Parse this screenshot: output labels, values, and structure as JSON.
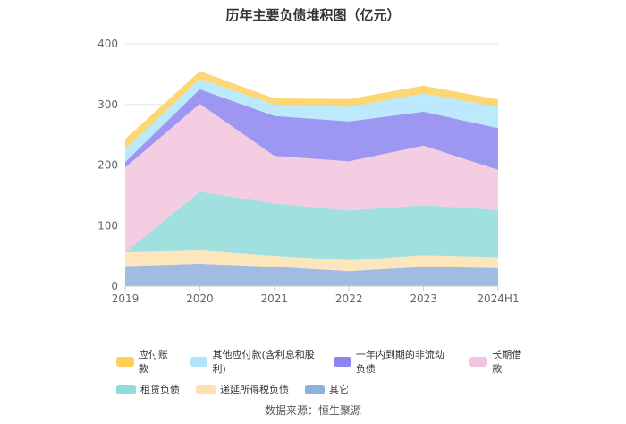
{
  "chart_data": {
    "type": "area",
    "title": "历年主要负债堆积图（亿元）",
    "x": [
      "2019",
      "2020",
      "2021",
      "2022",
      "2023",
      "2024H1"
    ],
    "ylim": [
      0,
      400
    ],
    "yticks": [
      0,
      100,
      200,
      300,
      400
    ],
    "grid": true,
    "legend_position": "bottom",
    "stacked": true,
    "series": [
      {
        "name": "其它",
        "color": "#8fb0dd",
        "values": [
          33,
          37,
          32,
          25,
          32,
          30
        ]
      },
      {
        "name": "递延所得税负债",
        "color": "#fde0b0",
        "values": [
          23,
          22,
          18,
          18,
          19,
          18
        ]
      },
      {
        "name": "租赁负债",
        "color": "#8fdcdb",
        "values": [
          0,
          97,
          87,
          82,
          83,
          78
        ]
      },
      {
        "name": "长期借款",
        "color": "#f3c4de",
        "values": [
          140,
          145,
          78,
          81,
          98,
          66
        ]
      },
      {
        "name": "一年内到期的非流动负债",
        "color": "#8c85f0",
        "values": [
          9,
          24,
          66,
          66,
          56,
          69
        ]
      },
      {
        "name": "其他应付款(含利息和股利)",
        "color": "#b0e5fb",
        "values": [
          21,
          17,
          19,
          24,
          30,
          35
        ]
      },
      {
        "name": "应付账款",
        "color": "#fdd05a",
        "values": [
          17,
          13,
          10,
          13,
          13,
          12
        ]
      }
    ]
  },
  "legend_order": [
    [
      "应付账款",
      "其他应付款(含利息和股利)",
      "一年内到期的非流动负债",
      "长期借款"
    ],
    [
      "租赁负债",
      "递延所得税负债",
      "其它"
    ]
  ],
  "source": "数据来源：恒生聚源"
}
